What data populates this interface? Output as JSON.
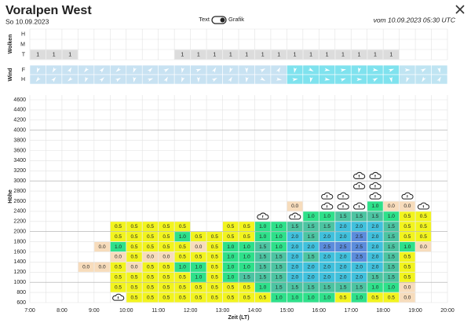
{
  "header": {
    "title": "Voralpen West",
    "date": "So 10.09.2023",
    "toggle_left": "Text",
    "toggle_right": "Grafik",
    "issued": "vom 10.09.2023 05:30 UTC"
  },
  "clouds": {
    "title": "Wolken",
    "rows": [
      {
        "label": "H",
        "cells": []
      },
      {
        "label": "M",
        "cells": []
      },
      {
        "label": "T",
        "cells": [
          "1",
          "1",
          "1",
          null,
          null,
          null,
          null,
          null,
          null,
          "1",
          "1",
          "1",
          "1",
          "1",
          "1",
          "1",
          "1",
          "1",
          "1",
          "1",
          "1",
          "1",
          "1",
          null,
          null,
          null
        ]
      }
    ]
  },
  "wind": {
    "title": "Wind",
    "rows": [
      "F",
      "H"
    ]
  },
  "grid": {
    "y_title": "Höhe",
    "x_title": "Zeit (LT)",
    "height_labels": [
      600,
      800,
      1000,
      1200,
      1400,
      1600,
      1800,
      2000,
      2200,
      2400,
      2600,
      2800,
      3000,
      3200,
      3400,
      3600,
      3800,
      4000,
      4200,
      4400,
      4600
    ],
    "time_labels": [
      "7:00",
      "8:00",
      "9:00",
      "10:00",
      "11:00",
      "12:00",
      "13:00",
      "14:00",
      "15:00",
      "16:00",
      "17:00",
      "18:00",
      "19:00",
      "20:00"
    ],
    "palette": [
      "#f7dcbc",
      "#f2f41e",
      "#2ee08a",
      "#4cc4a2",
      "#40c0dc",
      "#5b8cdc"
    ],
    "rows": [
      [
        null,
        null,
        null,
        null,
        null,
        null,
        "0.5",
        "0.5",
        "0.5",
        "0.5",
        "0.5",
        "0.5",
        "0.5",
        "0.5",
        "0.5",
        "1.0",
        "1.0",
        "1.0",
        "1.0",
        "0.5",
        "1.0",
        "0.5",
        "0.5",
        "0.0",
        null,
        null
      ],
      [
        null,
        null,
        null,
        null,
        null,
        "0.5",
        "0.5",
        "0.5",
        "0.5",
        "0.5",
        "0.5",
        "0.5",
        "0.5",
        "0.5",
        "1.0",
        "1.5",
        "1.5",
        "1.5",
        "1.5",
        "1.5",
        "1.5",
        "1.0",
        "1.0",
        "0.0",
        null,
        null
      ],
      [
        null,
        null,
        null,
        null,
        null,
        "0.5",
        "0.5",
        "0.5",
        "0.5",
        "0.5",
        "1.0",
        "0.5",
        "1.0",
        "1.5",
        "1.5",
        "1.5",
        "2.0",
        "2.0",
        "2.0",
        "2.0",
        "2.0",
        "1.5",
        "1.5",
        "0.5",
        null,
        null
      ],
      [
        null,
        null,
        null,
        "0.0",
        "0.0",
        "0.5",
        "0.0",
        "0.5",
        "0.5",
        "1.0",
        "1.0",
        "0.5",
        "1.0",
        "1.0",
        "1.5",
        "1.5",
        "2.0",
        "2.0",
        "2.0",
        "2.0",
        "2.0",
        "2.0",
        "1.5",
        "0.5",
        null,
        null
      ],
      [
        null,
        null,
        null,
        null,
        null,
        "0.0",
        "0.5",
        "0.0",
        "0.0",
        "0.5",
        "0.5",
        "0.5",
        "1.0",
        "1.0",
        "1.5",
        "1.5",
        "2.0",
        "1.5",
        "2.0",
        "2.0",
        "2.5",
        "2.0",
        "1.5",
        "0.5",
        null,
        null
      ],
      [
        null,
        null,
        null,
        null,
        "0.0",
        "1.0",
        "0.5",
        "0.5",
        "0.5",
        "0.5",
        "0.0",
        "0.5",
        "1.0",
        "1.0",
        "1.5",
        "1.0",
        "2.0",
        "2.0",
        "2.5",
        "2.5",
        "2.5",
        "2.0",
        "1.5",
        "1.0",
        "0.0",
        null
      ],
      [
        null,
        null,
        null,
        null,
        null,
        "0.5",
        "0.5",
        "0.5",
        "0.5",
        "1.0",
        "0.5",
        "0.5",
        "0.5",
        "0.5",
        "1.0",
        "1.0",
        "2.0",
        "1.5",
        "2.0",
        "2.0",
        "2.5",
        "2.0",
        "1.5",
        "0.5",
        "0.5",
        null
      ],
      [
        null,
        null,
        null,
        null,
        null,
        "0.5",
        "0.5",
        "0.5",
        "0.5",
        "0.5",
        null,
        null,
        "0.5",
        "0.5",
        "1.0",
        "1.0",
        "1.5",
        "1.5",
        "1.5",
        "2.0",
        "2.0",
        "2.0",
        "1.5",
        "0.5",
        "0.5",
        null
      ],
      [
        null,
        null,
        null,
        null,
        null,
        null,
        null,
        null,
        null,
        null,
        null,
        null,
        null,
        null,
        null,
        null,
        null,
        "1.0",
        "1.0",
        "1.5",
        "1.5",
        "1.5",
        "1.0",
        "0.5",
        "0.5",
        null
      ],
      [
        null,
        null,
        null,
        null,
        null,
        null,
        null,
        null,
        null,
        null,
        null,
        null,
        null,
        null,
        null,
        null,
        "0.0",
        null,
        null,
        null,
        null,
        "1.0",
        "0.0",
        "0.0",
        null,
        null
      ]
    ]
  }
}
